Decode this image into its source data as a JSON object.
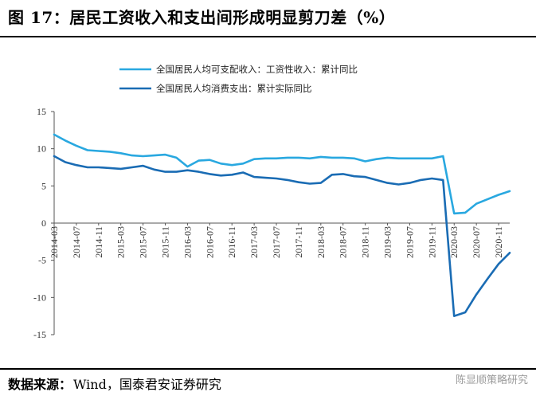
{
  "figure": {
    "title": "图 17：居民工资收入和支出间形成明显剪刀差（%）",
    "source_label": "数据来源：",
    "source_text": "Wind，国泰君安证券研究",
    "watermark": "陈显顺策略研究"
  },
  "chart_data": {
    "type": "line",
    "title": "",
    "xlabel": "",
    "ylabel": "",
    "ylim": [
      -15,
      15
    ],
    "yticks": [
      15,
      10,
      5,
      0,
      -5,
      -10,
      -15
    ],
    "grid": false,
    "legend_position": "top",
    "x": [
      "2014-03",
      "2014-05",
      "2014-07",
      "2014-09",
      "2014-11",
      "2015-01",
      "2015-03",
      "2015-05",
      "2015-07",
      "2015-09",
      "2015-11",
      "2016-01",
      "2016-03",
      "2016-05",
      "2016-07",
      "2016-09",
      "2016-11",
      "2017-01",
      "2017-03",
      "2017-05",
      "2017-07",
      "2017-09",
      "2017-11",
      "2018-01",
      "2018-03",
      "2018-05",
      "2018-07",
      "2018-09",
      "2018-11",
      "2019-01",
      "2019-03",
      "2019-05",
      "2019-07",
      "2019-09",
      "2019-11",
      "2020-01",
      "2020-03",
      "2020-05",
      "2020-07",
      "2020-09",
      "2020-11",
      "2021-01"
    ],
    "x_tick_labels": [
      "2014-03",
      "2014-07",
      "2014-11",
      "2015-03",
      "2015-07",
      "2015-11",
      "2016-03",
      "2016-07",
      "2016-11",
      "2017-03",
      "2017-07",
      "2017-11",
      "2018-03",
      "2018-07",
      "2018-11",
      "2019-03",
      "2019-07",
      "2019-11",
      "2020-03",
      "2020-07",
      "2020-11"
    ],
    "series": [
      {
        "name": "全国居民人均可支配收入：工资性收入：累计同比",
        "color": "#29a8e0",
        "values": [
          11.9,
          11.1,
          10.4,
          9.8,
          9.7,
          9.6,
          9.4,
          9.1,
          9.0,
          9.1,
          9.2,
          8.8,
          7.6,
          8.4,
          8.5,
          8.0,
          7.8,
          8.0,
          8.6,
          8.7,
          8.7,
          8.8,
          8.8,
          8.7,
          8.9,
          8.8,
          8.8,
          8.7,
          8.3,
          8.6,
          8.8,
          8.7,
          8.7,
          8.7,
          8.7,
          9.0,
          1.3,
          1.4,
          2.6,
          3.2,
          3.8,
          4.3
        ]
      },
      {
        "name": "全国居民人均消费支出：累计实际同比",
        "color": "#1a6cb4",
        "values": [
          9.0,
          8.2,
          7.8,
          7.5,
          7.5,
          7.4,
          7.3,
          7.5,
          7.7,
          7.2,
          6.9,
          6.9,
          7.1,
          6.9,
          6.6,
          6.4,
          6.5,
          6.8,
          6.2,
          6.1,
          6.0,
          5.8,
          5.5,
          5.3,
          5.4,
          6.5,
          6.6,
          6.3,
          6.2,
          5.8,
          5.4,
          5.2,
          5.4,
          5.8,
          6.0,
          5.8,
          -12.5,
          -12.0,
          -9.6,
          -7.5,
          -5.5,
          -4.0
        ]
      }
    ]
  }
}
